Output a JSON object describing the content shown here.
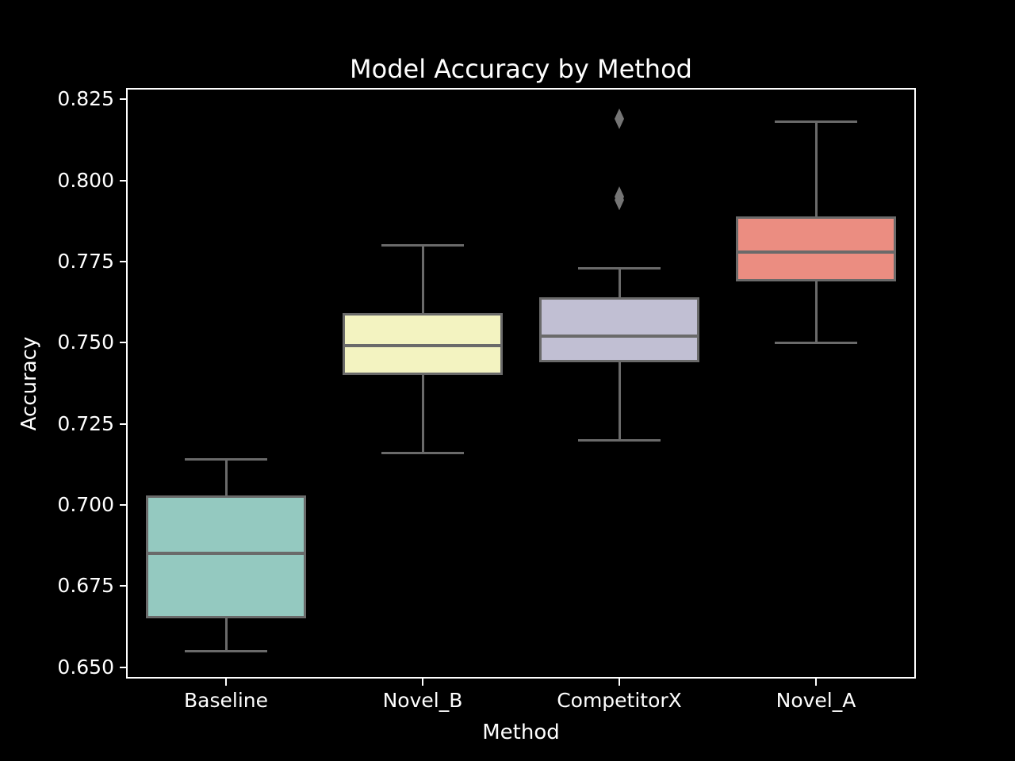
{
  "chart_data": {
    "type": "box",
    "title": "Model Accuracy by Method",
    "xlabel": "Method",
    "ylabel": "Accuracy",
    "ylim": [
      0.647,
      0.828
    ],
    "yticks": [
      0.65,
      0.675,
      0.7,
      0.725,
      0.75,
      0.775,
      0.8,
      0.825
    ],
    "ytick_labels": [
      "0.650",
      "0.675",
      "0.700",
      "0.725",
      "0.750",
      "0.775",
      "0.800",
      "0.825"
    ],
    "categories": [
      "Baseline",
      "Novel_B",
      "CompetitorX",
      "Novel_A"
    ],
    "series": [
      {
        "name": "Baseline",
        "color": "#94c9c0",
        "whisker_low": 0.655,
        "q1": 0.665,
        "median": 0.685,
        "q3": 0.703,
        "whisker_high": 0.714,
        "outliers": []
      },
      {
        "name": "Novel_B",
        "color": "#f3f3c1",
        "whisker_low": 0.716,
        "q1": 0.74,
        "median": 0.749,
        "q3": 0.759,
        "whisker_high": 0.78,
        "outliers": []
      },
      {
        "name": "CompetitorX",
        "color": "#c1bfd3",
        "whisker_low": 0.72,
        "q1": 0.744,
        "median": 0.752,
        "q3": 0.764,
        "whisker_high": 0.773,
        "outliers": [
          0.819,
          0.795,
          0.794
        ]
      },
      {
        "name": "Novel_A",
        "color": "#eb8d81",
        "whisker_low": 0.75,
        "q1": 0.769,
        "median": 0.778,
        "q3": 0.789,
        "whisker_high": 0.818,
        "outliers": []
      }
    ],
    "grid": false,
    "legend": null,
    "colors": {
      "background": "#000000",
      "text": "#ffffff",
      "frame": "#ffffff",
      "line": "#6a6a6a",
      "outlier": "#757575"
    }
  }
}
